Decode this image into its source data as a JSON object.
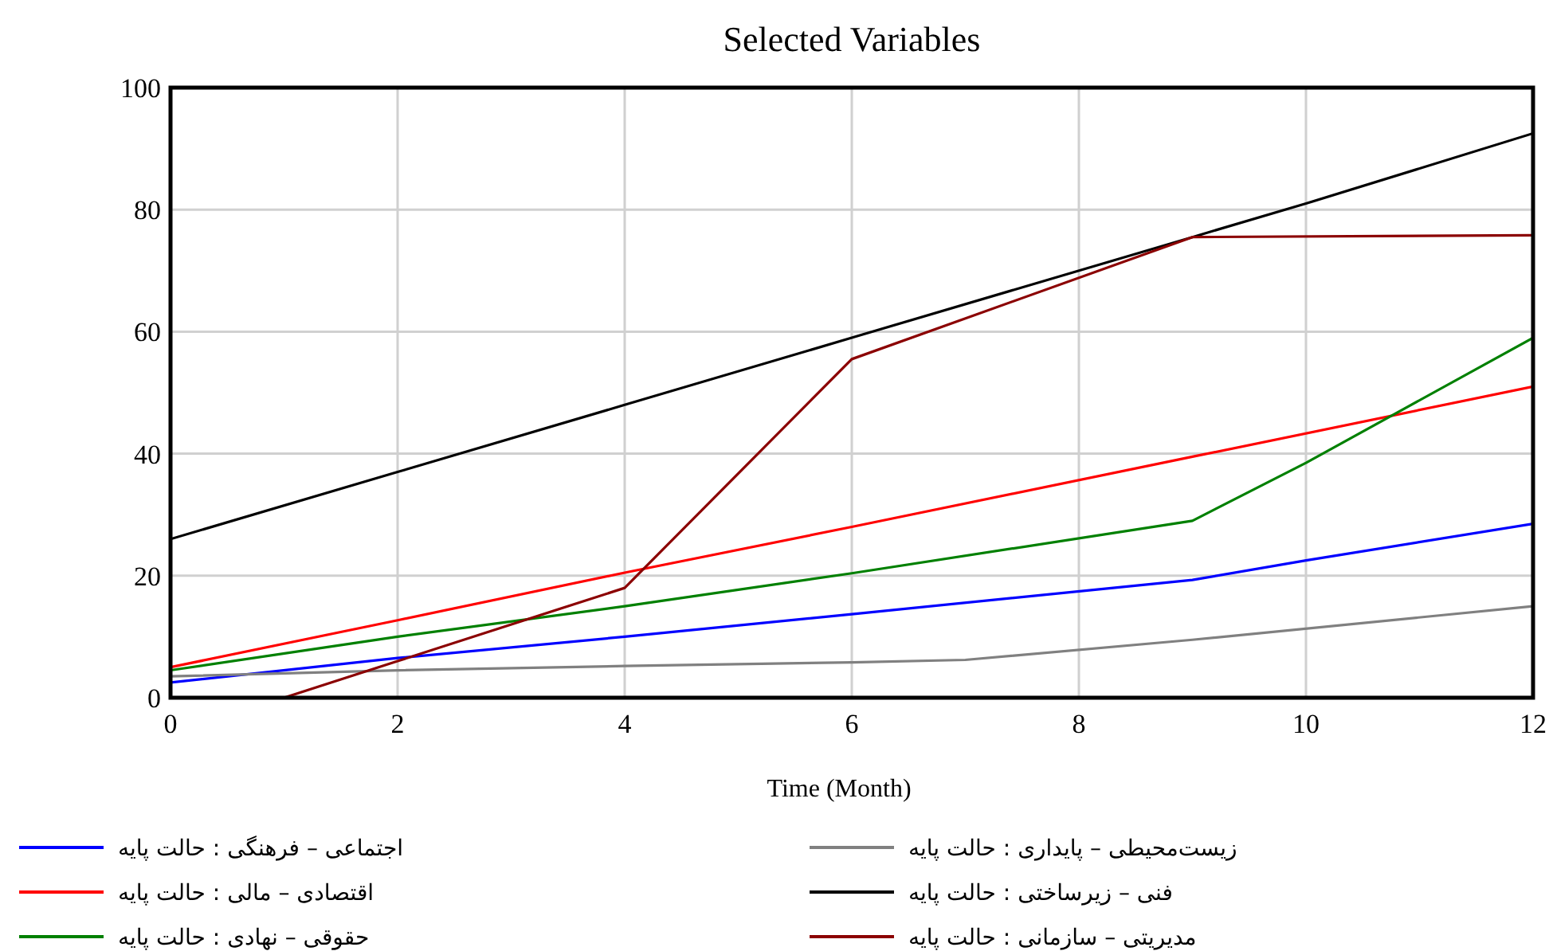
{
  "chart_data": {
    "type": "line",
    "title": "Selected Variables",
    "xlabel": "Time (Month)",
    "xlim": [
      0,
      12
    ],
    "ylim": [
      0,
      100
    ],
    "xticks": [
      0,
      2,
      4,
      6,
      8,
      10,
      12
    ],
    "yticks": [
      0,
      20,
      40,
      60,
      80,
      100
    ],
    "grid": true,
    "legend": "bottom",
    "series": [
      {
        "name": "اجتماعی – فرهنگی : حالت پایه",
        "color": "#0000ff",
        "x": [
          0,
          2,
          4,
          6,
          9,
          10,
          12
        ],
        "values": [
          2.5,
          6.5,
          10,
          13.7,
          19.3,
          22.5,
          28.5
        ]
      },
      {
        "name": "اقتصادی – مالی : حالت پایه",
        "color": "#ff0000",
        "x": [
          0,
          2,
          4,
          6,
          9,
          12
        ],
        "values": [
          5,
          12.7,
          20.5,
          28,
          39.5,
          51
        ]
      },
      {
        "name": "حقوقی – نهادی : حالت پایه",
        "color": "#008000",
        "x": [
          0,
          2,
          4,
          6,
          9,
          10,
          12
        ],
        "values": [
          4.5,
          10,
          15,
          20.4,
          29,
          38.5,
          59
        ]
      },
      {
        "name": "زیست‌محیطی – پایداری : حالت پایه",
        "color": "#808080",
        "x": [
          0,
          2,
          4,
          6,
          7,
          9,
          12
        ],
        "values": [
          3.5,
          4.5,
          5.2,
          5.8,
          6.2,
          9.5,
          15
        ]
      },
      {
        "name": "فنی – زیرساختی : حالت پایه",
        "color": "#000000",
        "x": [
          0,
          2,
          4,
          6,
          9,
          10,
          12
        ],
        "values": [
          26,
          37,
          48,
          59,
          75.5,
          81,
          92.5
        ]
      },
      {
        "name": "مدیریتی – سازمانی : حالت پایه",
        "color": "#8b0000",
        "x": [
          1,
          2,
          4,
          6,
          9,
          12
        ],
        "values": [
          0,
          6,
          18,
          55.5,
          75.5,
          75.8
        ]
      }
    ]
  }
}
